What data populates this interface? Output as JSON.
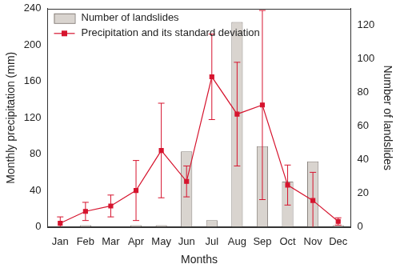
{
  "chart_data": {
    "type": "bar",
    "x_label": "Months",
    "y_label": "Monthly precipitation (mm)",
    "y2_label": "Number of landslides",
    "categories": [
      "Jan",
      "Feb",
      "Mar",
      "Apr",
      "May",
      "Jun",
      "Jul",
      "Aug",
      "Sep",
      "Oct",
      "Nov",
      "Dec"
    ],
    "ylim": [
      0,
      240
    ],
    "yticks": [
      0,
      40,
      80,
      120,
      160,
      200,
      240
    ],
    "y2lim": [
      0,
      130
    ],
    "y2ticks": [
      0,
      20,
      40,
      60,
      80,
      100,
      120
    ],
    "grid": false,
    "legend": "upper left",
    "series": [
      {
        "name": "Number of landslides",
        "type": "bar",
        "axis": "y2",
        "color": "#d9d4cf",
        "values": [
          0,
          1,
          0,
          1,
          1,
          45,
          4,
          122,
          48,
          27,
          39,
          1
        ]
      },
      {
        "name": "Precipitation and its standard deviation",
        "type": "line",
        "color": "#d6142e",
        "marker": "square",
        "values": [
          4,
          17,
          23,
          40,
          84,
          50,
          165,
          124,
          134,
          46,
          29,
          6
        ],
        "std": [
          7,
          10,
          12,
          33,
          52,
          17,
          47,
          57,
          104,
          22,
          31,
          4
        ]
      }
    ]
  }
}
